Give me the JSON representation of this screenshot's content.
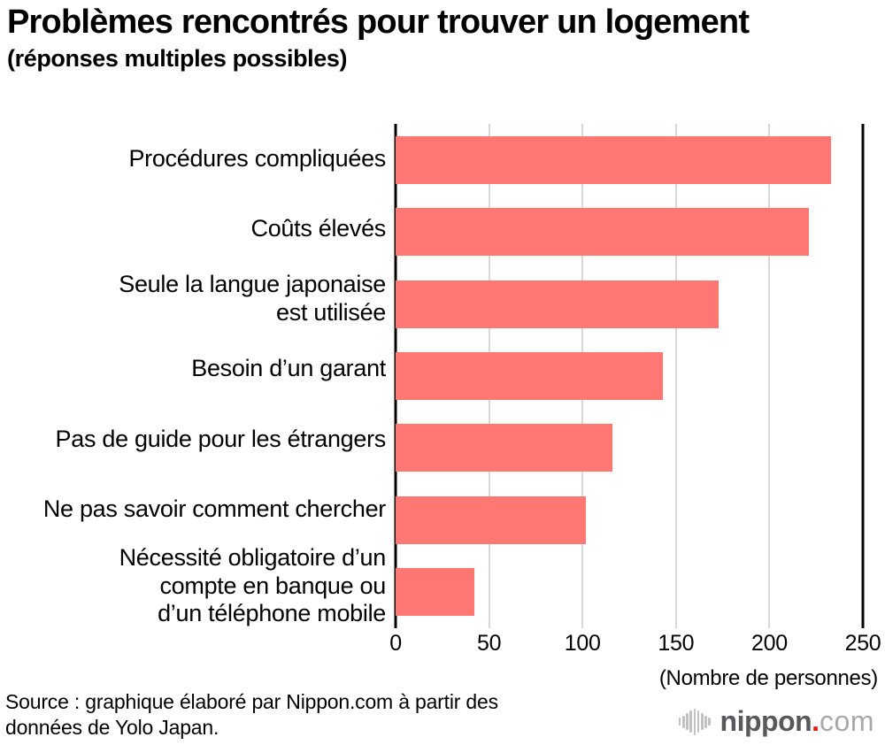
{
  "header": {
    "title": "Problèmes rencontrés pour trouver un logement",
    "subtitle": "(réponses multiples possibles)"
  },
  "chart_data": {
    "type": "bar",
    "orientation": "horizontal",
    "categories": [
      "Procédures compliquées",
      "Coûts élevés",
      "Seule la langue japonaise\nest utilisée",
      "Besoin d’un garant",
      "Pas de guide pour les étrangers",
      "Ne pas savoir comment chercher",
      "Nécessité obligatoire d’un\ncompte en banque ou\nd’un téléphone mobile"
    ],
    "values": [
      233,
      221,
      173,
      143,
      116,
      102,
      42
    ],
    "xlim": [
      0,
      250
    ],
    "x_ticks": [
      0,
      50,
      100,
      150,
      200,
      250
    ],
    "x_axis_note": "(Nombre de personnes)",
    "bar_color": "#ff7773",
    "gridline_color": "#d8d8d8",
    "axis_color": "#000000",
    "grid": true,
    "legend": "none"
  },
  "source": {
    "line1": "Source : graphique élaboré par Nippon.com à partir des",
    "line2": "données de Yolo Japan."
  },
  "logo": {
    "icon": "sound-wave-icon",
    "name": "nippon",
    "dot": ".",
    "tld": "com",
    "name_color": "#58595b",
    "dot_color": "#e8170f",
    "tld_color": "#a7a9ac"
  }
}
